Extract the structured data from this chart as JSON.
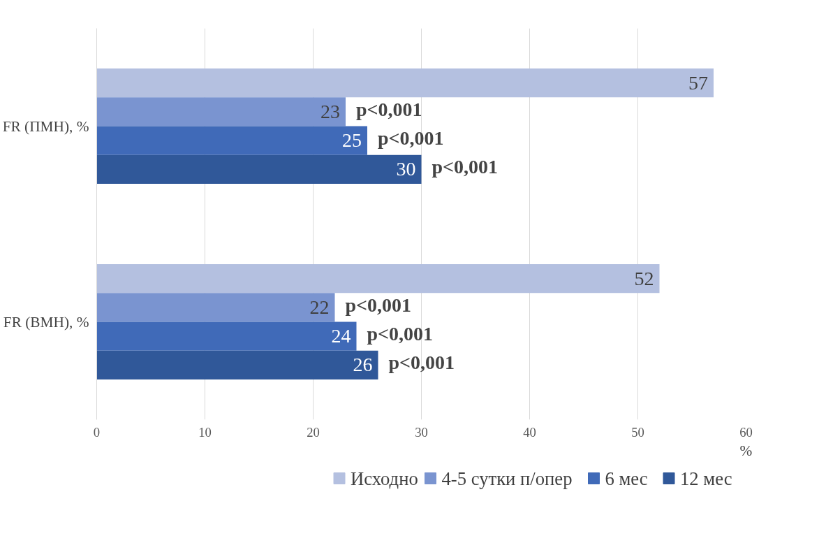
{
  "chart_data": {
    "type": "bar",
    "orientation": "horizontal",
    "categories": [
      "FR (ПМН), %",
      "FR (ВМН), %"
    ],
    "series": [
      {
        "name": "Исходно",
        "color": "#b4c0e0",
        "values": [
          57,
          52
        ]
      },
      {
        "name": "4-5 сутки п/опер",
        "color": "#7a94d0",
        "values": [
          23,
          22
        ]
      },
      {
        "name": "6 мес",
        "color": "#406ab8",
        "values": [
          25,
          24
        ]
      },
      {
        "name": "12 мес",
        "color": "#305899",
        "values": [
          30,
          26
        ]
      }
    ],
    "xlim": [
      0,
      60
    ],
    "xticks": [
      0,
      10,
      20,
      30,
      40,
      50,
      60
    ],
    "xlabel": "%",
    "grid": "x",
    "legend": "bottom",
    "data_labels": true,
    "annotations": [
      "p<0,001",
      "p<0,001",
      "p<0,001",
      "p<0,001",
      "p<0,001",
      "p<0,001"
    ]
  }
}
